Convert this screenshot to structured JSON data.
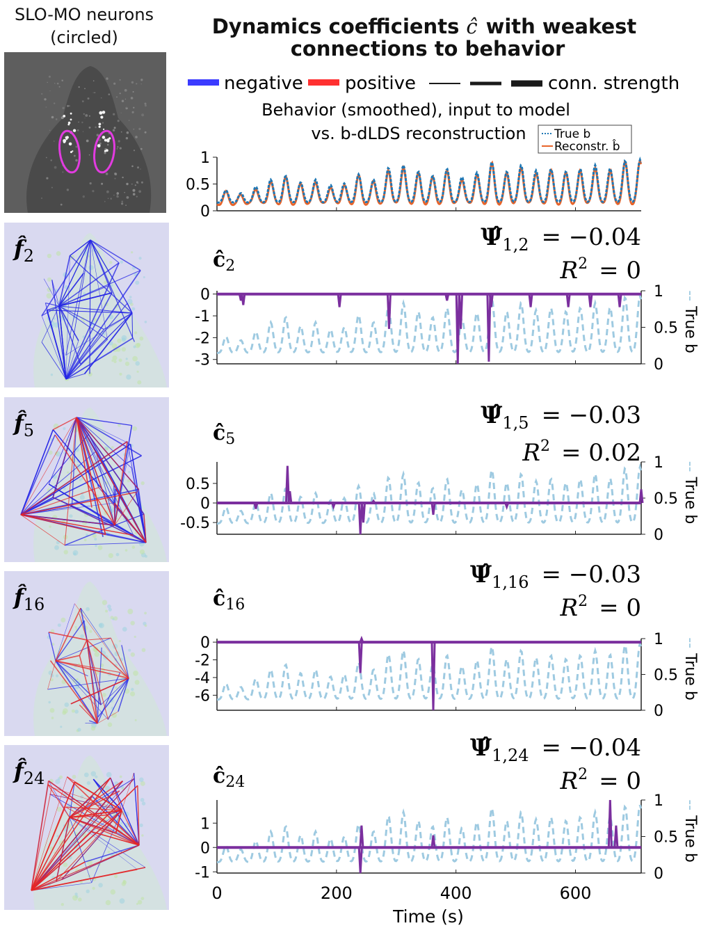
{
  "neuron_panel": {
    "title_line1": "SLO-MO neurons",
    "title_line2": "(circled)"
  },
  "main_title": {
    "line1": "Dynamics coefficients",
    "symbol": "ĉ",
    "line1_end": "with weakest",
    "line2": "connections to behavior"
  },
  "legend": {
    "items": [
      {
        "label": "negative",
        "color": "#3b3bff"
      },
      {
        "label": "positive",
        "color": "#ff3030"
      },
      {
        "label": "conn. strength",
        "color": "#1a1a1a"
      }
    ]
  },
  "behavior_panel": {
    "title_line1": "Behavior (smoothed), input to model",
    "title_line2": "vs. b-dLDS reconstruction",
    "legend": [
      {
        "label": "True b",
        "color": "#1f77b4"
      },
      {
        "label": "Reconstr. b̂",
        "color": "#e8642a"
      }
    ]
  },
  "colors": {
    "coef": "#7b2f9e",
    "true_b": "#9ecae1",
    "true_b_top": "#1f77b4",
    "reconstr": "#e8642a",
    "panel_bg": "#d9d9f0",
    "neg_edge": "#2626e6",
    "pos_edge": "#e62626"
  },
  "right_axis_label": "True b",
  "x_axis": {
    "label": "Time (s)",
    "ticks": [
      "0",
      "200",
      "400",
      "600"
    ]
  },
  "chart_data": [
    {
      "type": "line",
      "name": "behavior",
      "title": "Behavior (smoothed), input to model vs. b-dLDS reconstruction",
      "series": [
        {
          "name": "True b"
        },
        {
          "name": "Reconstr. b̂"
        }
      ],
      "xlim": [
        0,
        710
      ],
      "ylim": [
        0,
        1
      ],
      "yticks": [
        "0",
        "0.5",
        "1"
      ],
      "peaks_x": [
        15,
        40,
        65,
        90,
        115,
        140,
        165,
        190,
        213,
        237,
        262,
        287,
        312,
        337,
        361,
        385,
        410,
        435,
        460,
        485,
        509,
        534,
        559,
        584,
        608,
        633,
        658,
        683,
        708
      ],
      "peaks_y": [
        0.35,
        0.3,
        0.42,
        0.55,
        0.62,
        0.5,
        0.55,
        0.45,
        0.48,
        0.65,
        0.55,
        0.77,
        0.82,
        0.7,
        0.62,
        0.75,
        0.6,
        0.68,
        0.88,
        0.7,
        0.82,
        0.72,
        0.75,
        0.7,
        0.75,
        0.82,
        0.76,
        0.9,
        0.92
      ]
    },
    {
      "type": "line",
      "name": "c2",
      "label": "ĉ",
      "sub": "2",
      "psi_sub": "1,2",
      "psi_val": "−0.04",
      "r2": "0",
      "ylim": [
        -3.2,
        0.15
      ],
      "yticks": [
        0,
        -1,
        -2,
        -3
      ],
      "ytick_labels": [
        "0",
        "-1",
        "-2",
        "-3"
      ],
      "baseline": 0,
      "spikes": [
        [
          40,
          -0.3
        ],
        [
          44,
          -0.5
        ],
        [
          205,
          -0.6
        ],
        [
          288,
          -1.6
        ],
        [
          385,
          -0.3
        ],
        [
          403,
          -3.2
        ],
        [
          408,
          -1.6
        ],
        [
          455,
          -3.1
        ],
        [
          459,
          -0.6
        ],
        [
          525,
          -0.6
        ],
        [
          588,
          -0.6
        ],
        [
          625,
          -0.6
        ],
        [
          674,
          -0.6
        ]
      ]
    },
    {
      "type": "line",
      "name": "c5",
      "label": "ĉ",
      "sub": "5",
      "psi_sub": "1,5",
      "psi_val": "−0.03",
      "r2": "0.02",
      "ylim": [
        -0.8,
        1.05
      ],
      "yticks": [
        0.5,
        0,
        -0.5
      ],
      "ytick_labels": [
        "0.5",
        "0",
        "-0.5"
      ],
      "baseline": 0,
      "spikes": [
        [
          65,
          -0.15
        ],
        [
          118,
          0.95
        ],
        [
          122,
          0.3
        ],
        [
          195,
          -0.1
        ],
        [
          240,
          -0.8
        ],
        [
          245,
          -0.5
        ],
        [
          262,
          0.05
        ],
        [
          362,
          -0.3
        ],
        [
          485,
          -0.1
        ],
        [
          710,
          0.35
        ]
      ]
    },
    {
      "type": "line",
      "name": "c16",
      "label": "ĉ",
      "sub": "16",
      "psi_sub": "1,16",
      "psi_val": "−0.03",
      "r2": "0",
      "ylim": [
        -7.7,
        0.4
      ],
      "yticks": [
        0,
        -2,
        -4,
        -6
      ],
      "ytick_labels": [
        "0",
        "-2",
        "-4",
        "-6"
      ],
      "baseline": 0,
      "spikes": [
        [
          240,
          -3.5
        ],
        [
          242,
          0.4
        ],
        [
          362,
          -7.7
        ]
      ]
    },
    {
      "type": "line",
      "name": "c24",
      "label": "ĉ",
      "sub": "24",
      "psi_sub": "1,24",
      "psi_val": "−0.04",
      "r2": "0",
      "ylim": [
        -1.05,
        1.95
      ],
      "yticks": [
        1,
        0,
        -1
      ],
      "ytick_labels": [
        "1",
        "0",
        "-1"
      ],
      "baseline": 0,
      "spikes": [
        [
          240,
          -1.05
        ],
        [
          242,
          0.9
        ],
        [
          362,
          0.5
        ],
        [
          658,
          1.95
        ],
        [
          668,
          0.9
        ]
      ]
    }
  ]
}
